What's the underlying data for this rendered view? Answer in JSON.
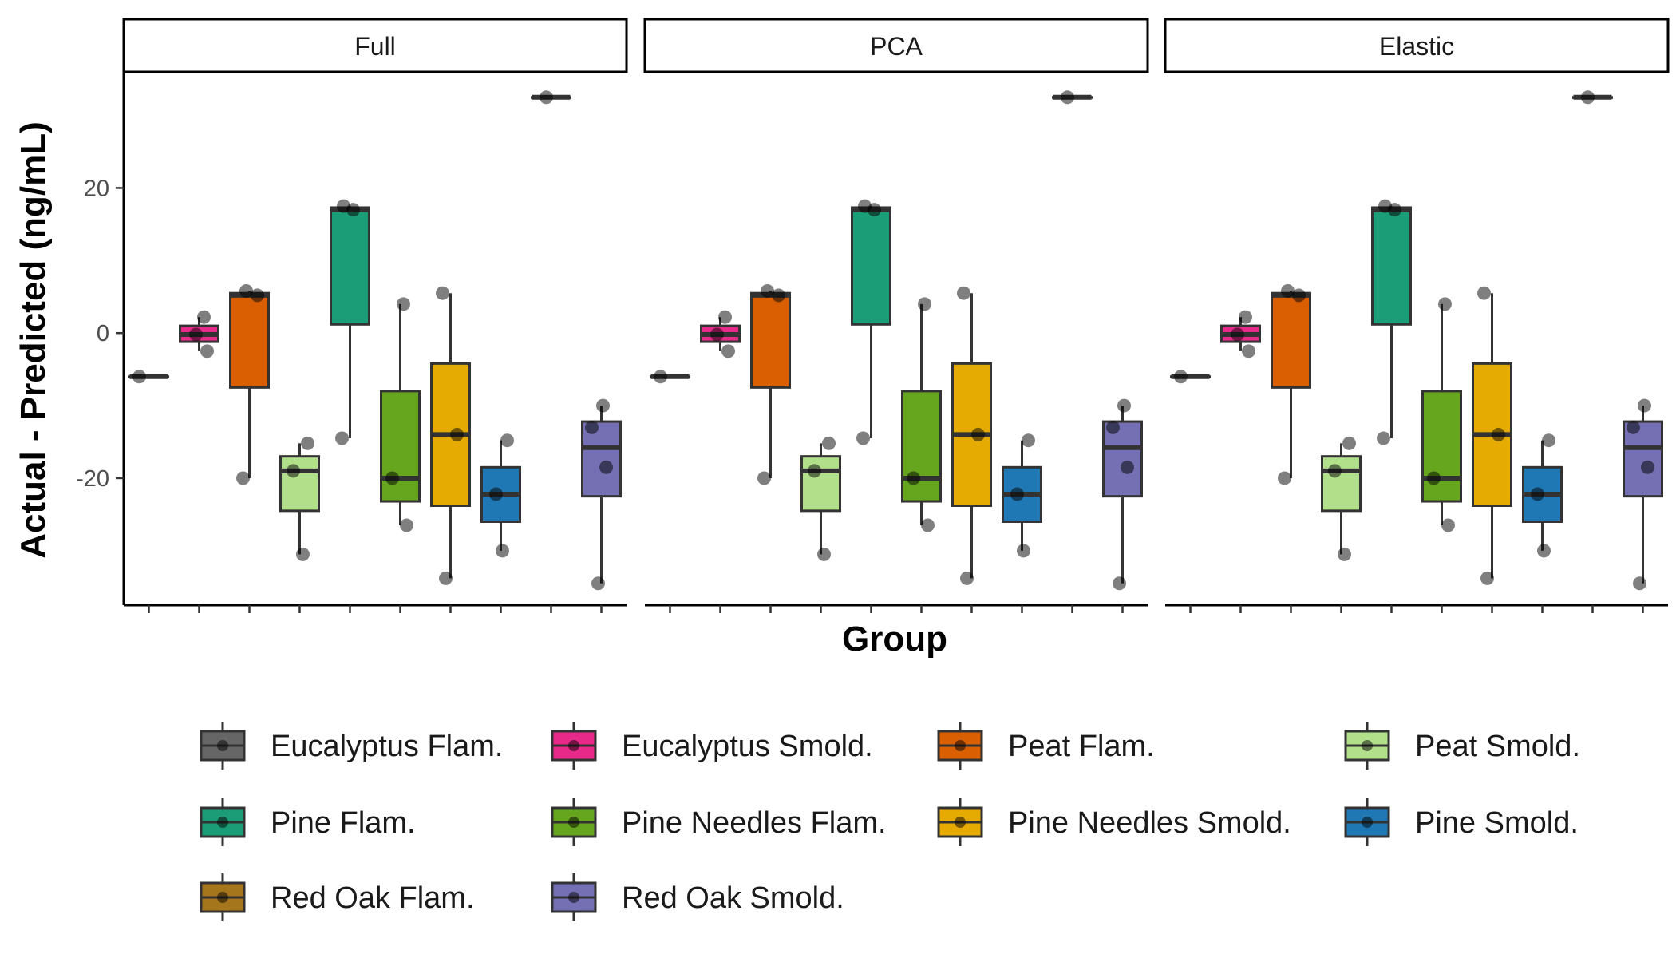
{
  "chart_data": {
    "type": "boxplot",
    "ylabel": "Actual - Predicted (ng/mL)",
    "xlabel": "Group",
    "ylim": [
      -37.5,
      36
    ],
    "yticks": [
      -20,
      0,
      20
    ],
    "facets": [
      "Full",
      "PCA",
      "Elastic"
    ],
    "groups": [
      {
        "name": "Eucalyptus Flam.",
        "color": "#666666",
        "min": -6,
        "q1": -6,
        "median": -6,
        "q3": -6,
        "max": -6,
        "points": [
          -6
        ]
      },
      {
        "name": "Eucalyptus Smold.",
        "color": "#e7298a",
        "min": -2.5,
        "q1": -1.2,
        "median": -0.2,
        "q3": 1.0,
        "max": 2.2,
        "points": [
          2.2,
          -0.2,
          -2.5
        ]
      },
      {
        "name": "Peat Flam.",
        "color": "#d95f02",
        "min": -20,
        "q1": -7.5,
        "median": 5.2,
        "q3": 5.5,
        "max": 5.8,
        "points": [
          5.8,
          5.2,
          -20
        ]
      },
      {
        "name": "Peat Smold.",
        "color": "#b2df8a",
        "min": -30.5,
        "q1": -24.5,
        "median": -19,
        "q3": -17,
        "max": -15.2,
        "points": [
          -15.2,
          -19,
          -30.5
        ]
      },
      {
        "name": "Pine Flam.",
        "color": "#1b9e77",
        "min": -14.5,
        "q1": 1.2,
        "median": 17,
        "q3": 17.3,
        "max": 17.5,
        "points": [
          17.5,
          17,
          -14.5
        ]
      },
      {
        "name": "Pine Needles Flam.",
        "color": "#66a61e",
        "min": -26.5,
        "q1": -23.2,
        "median": -20,
        "q3": -8,
        "max": 4,
        "points": [
          4,
          -20,
          -26.5
        ]
      },
      {
        "name": "Pine Needles Smold.",
        "color": "#e6ab02",
        "min": -33.8,
        "q1": -23.8,
        "median": -14,
        "q3": -4.2,
        "max": 5.5,
        "points": [
          5.5,
          -14,
          -33.8
        ]
      },
      {
        "name": "Pine Smold.",
        "color": "#1f78b4",
        "min": -30,
        "q1": -26,
        "median": -22.2,
        "q3": -18.5,
        "max": -14.8,
        "points": [
          -14.8,
          -22.2,
          -30
        ]
      },
      {
        "name": "Red Oak Flam.",
        "color": "#a6761d",
        "min": 32.5,
        "q1": 32.5,
        "median": 32.5,
        "q3": 32.5,
        "max": 32.5,
        "points": [
          32.5
        ]
      },
      {
        "name": "Red Oak Smold.",
        "color": "#7570b3",
        "min": -34.5,
        "q1": -22.5,
        "median": -15.8,
        "q3": -12.2,
        "max": -10,
        "points": [
          -10,
          -13,
          -18.5,
          -34.5
        ]
      }
    ],
    "legend_position": "bottom"
  }
}
